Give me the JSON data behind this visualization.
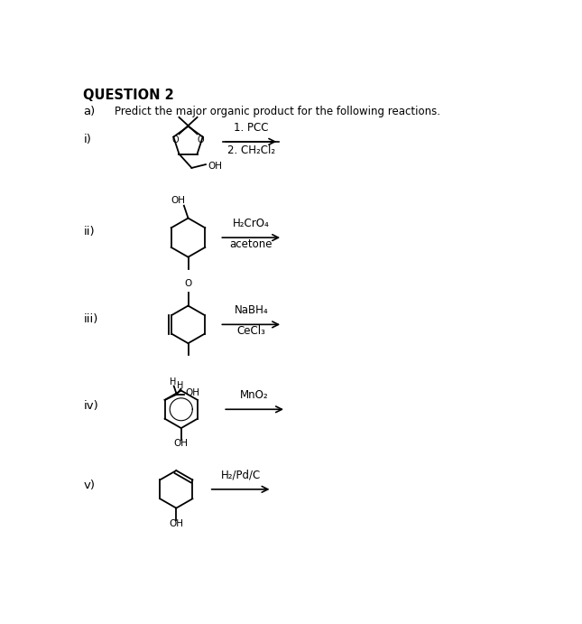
{
  "title": "QUESTION 2",
  "subtitle_a": "a)",
  "instruction": "Predict the major organic product for the following reactions.",
  "reactions": [
    {
      "label": "i)",
      "r1": "1. PCC",
      "r2": "2. CH₂Cl₂"
    },
    {
      "label": "ii)",
      "r1": "H₂CrO₄",
      "r2": "acetone"
    },
    {
      "label": "iii)",
      "r1": "NaBH₄",
      "r2": "CeCl₃"
    },
    {
      "label": "iv)",
      "r1": "MnO₂",
      "r2": ""
    },
    {
      "label": "v)",
      "r1": "H₂/Pd/C",
      "r2": ""
    }
  ],
  "bg_color": "#ffffff",
  "text_color": "#000000"
}
